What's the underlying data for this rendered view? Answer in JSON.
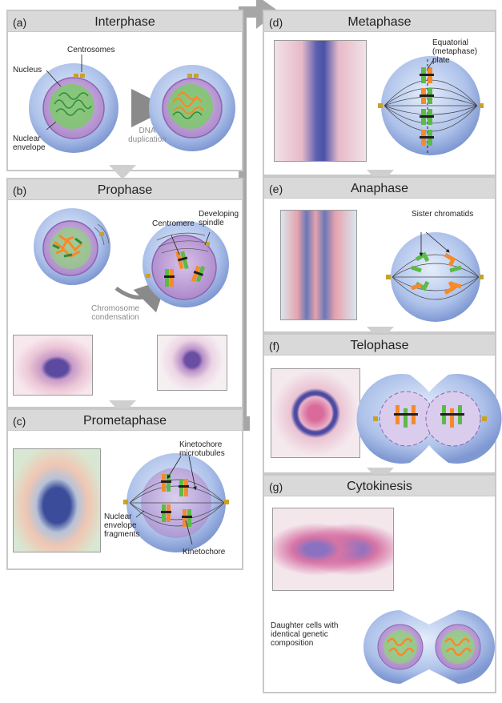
{
  "colors": {
    "panel_border": "#c8c8c8",
    "header_bg": "#d9d9d9",
    "cell_blue": "#a9bde6",
    "nucleus_purple": "#b98fd0",
    "chromatin_green": "#5cba47",
    "chromatid_orange": "#f58a2a",
    "arrow_gray": "#9a9a9a"
  },
  "panels": {
    "a": {
      "letter": "(a)",
      "title": "Interphase",
      "labels": {
        "centrosomes": "Centrosomes",
        "nucleus": "Nucleus",
        "nuclear_envelope": "Nuclear envelope",
        "dna_duplication": "DNA duplication"
      }
    },
    "b": {
      "letter": "(b)",
      "title": "Prophase",
      "labels": {
        "centromere": "Centromere",
        "developing_spindle": "Developing spindle",
        "chromosome_condensation": "Chromosome condensation"
      }
    },
    "c": {
      "letter": "(c)",
      "title": "Prometaphase",
      "labels": {
        "kinetochore_microtubules": "Kinetochore microtubules",
        "nuclear_envelope_fragments": "Nuclear envelope fragments",
        "kinetochore": "Kinetochore"
      }
    },
    "d": {
      "letter": "(d)",
      "title": "Metaphase",
      "labels": {
        "equatorial_plate": "Equatorial (metaphase) plate"
      }
    },
    "e": {
      "letter": "(e)",
      "title": "Anaphase",
      "labels": {
        "sister_chromatids": "Sister chromatids"
      }
    },
    "f": {
      "letter": "(f)",
      "title": "Telophase"
    },
    "g": {
      "letter": "(g)",
      "title": "Cytokinesis",
      "labels": {
        "daughter_cells": "Daughter cells with identical genetic composition"
      }
    }
  }
}
